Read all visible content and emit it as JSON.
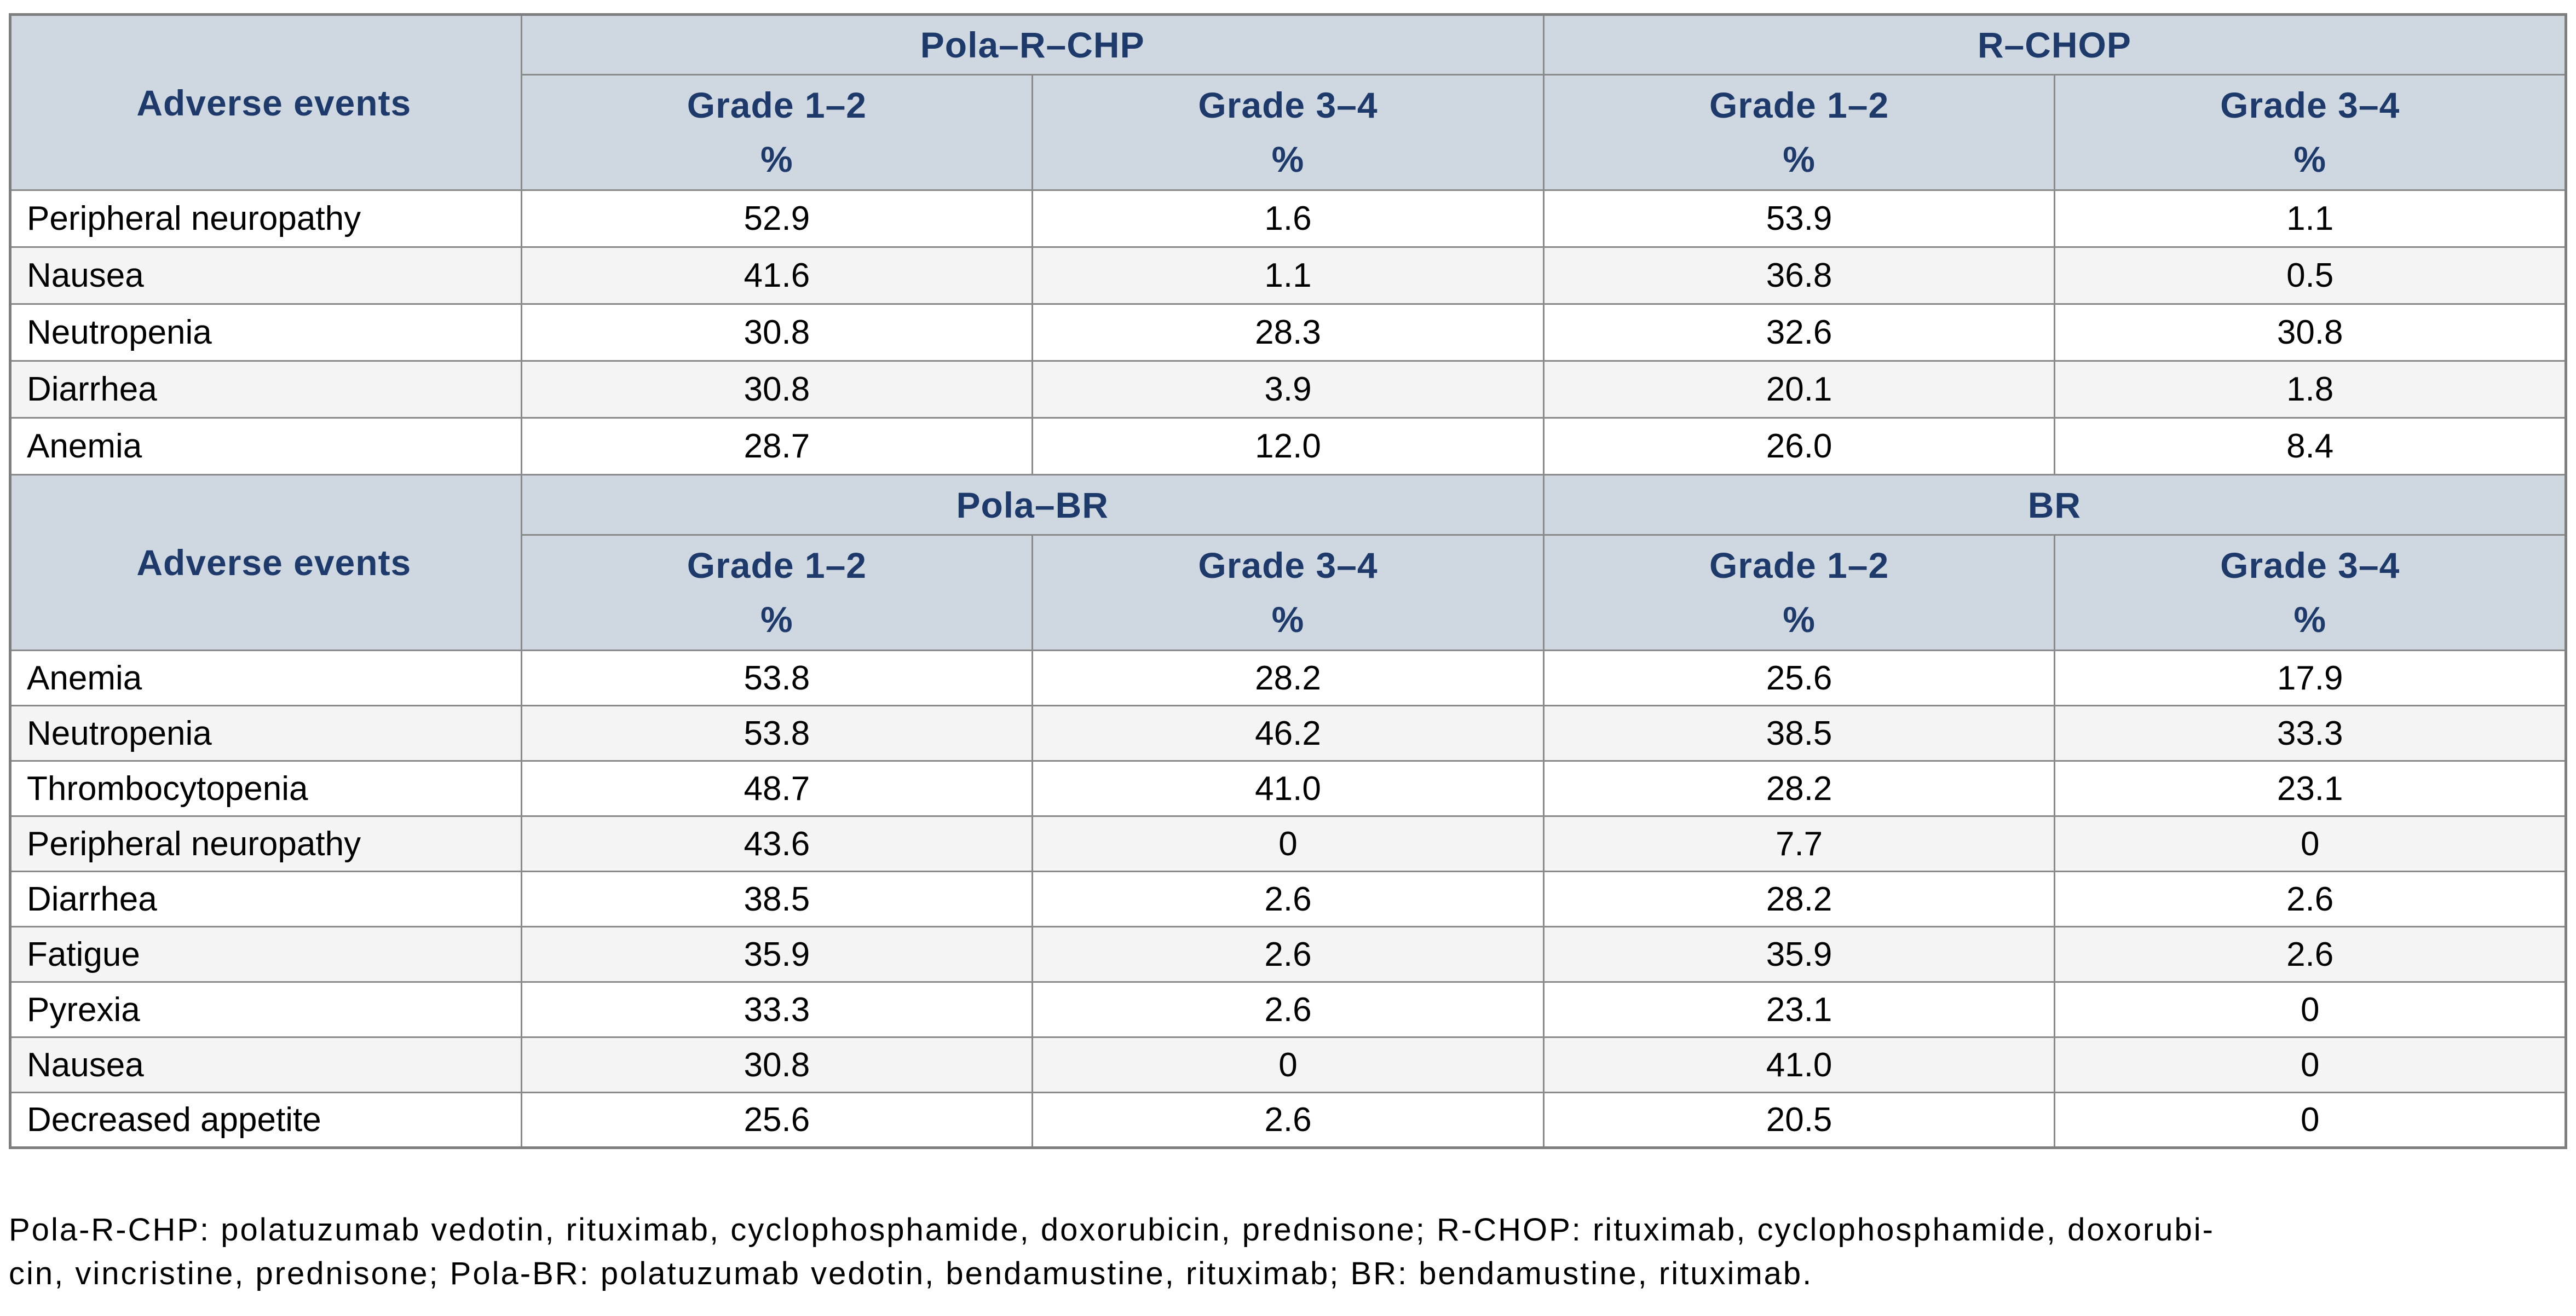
{
  "colors": {
    "header_bg": "#cfd8e1",
    "header_text": "#1e3a6b",
    "border": "#8a8a8a",
    "stripe_gray": "#f4f4f4",
    "row_white": "#ffffff",
    "data_text": "#000000"
  },
  "tables": [
    {
      "row_header_label": "Adverse events",
      "group_headers": [
        "Pola–R–CHP",
        "R–CHOP"
      ],
      "sub_headers": [
        {
          "grade": "Grade 1–2",
          "unit": "%"
        },
        {
          "grade": "Grade 3–4",
          "unit": "%"
        },
        {
          "grade": "Grade 1–2",
          "unit": "%"
        },
        {
          "grade": "Grade 3–4",
          "unit": "%"
        }
      ],
      "rows": [
        {
          "event": "Peripheral neuropathy",
          "values": [
            "52.9",
            "1.6",
            "53.9",
            "1.1"
          ]
        },
        {
          "event": "Nausea",
          "values": [
            "41.6",
            "1.1",
            "36.8",
            "0.5"
          ]
        },
        {
          "event": "Neutropenia",
          "values": [
            "30.8",
            "28.3",
            "32.6",
            "30.8"
          ]
        },
        {
          "event": "Diarrhea",
          "values": [
            "30.8",
            "3.9",
            "20.1",
            "1.8"
          ]
        },
        {
          "event": "Anemia",
          "values": [
            "28.7",
            "12.0",
            "26.0",
            "8.4"
          ]
        }
      ]
    },
    {
      "row_header_label": "Adverse events",
      "group_headers": [
        "Pola–BR",
        "BR"
      ],
      "sub_headers": [
        {
          "grade": "Grade 1–2",
          "unit": "%"
        },
        {
          "grade": "Grade 3–4",
          "unit": "%"
        },
        {
          "grade": "Grade 1–2",
          "unit": "%"
        },
        {
          "grade": "Grade 3–4",
          "unit": "%"
        }
      ],
      "rows": [
        {
          "event": "Anemia",
          "values": [
            "53.8",
            "28.2",
            "25.6",
            "17.9"
          ]
        },
        {
          "event": "Neutropenia",
          "values": [
            "53.8",
            "46.2",
            "38.5",
            "33.3"
          ]
        },
        {
          "event": "Thrombocytopenia",
          "values": [
            "48.7",
            "41.0",
            "28.2",
            "23.1"
          ]
        },
        {
          "event": "Peripheral neuropathy",
          "values": [
            "43.6",
            "0",
            "7.7",
            "0"
          ]
        },
        {
          "event": "Diarrhea",
          "values": [
            "38.5",
            "2.6",
            "28.2",
            "2.6"
          ]
        },
        {
          "event": "Fatigue",
          "values": [
            "35.9",
            "2.6",
            "35.9",
            "2.6"
          ]
        },
        {
          "event": "Pyrexia",
          "values": [
            "33.3",
            "2.6",
            "23.1",
            "0"
          ]
        },
        {
          "event": "Nausea",
          "values": [
            "30.8",
            "0",
            "41.0",
            "0"
          ]
        },
        {
          "event": "Decreased appetite",
          "values": [
            "25.6",
            "2.6",
            "20.5",
            "0"
          ]
        }
      ]
    }
  ],
  "footnote": {
    "line1": "Pola-R-CHP: polatuzumab vedotin, rituximab, cyclophosphamide, doxorubicin, prednisone; R-CHOP: rituximab, cyclophosphamide, doxorubi-",
    "line2": "cin, vincristine, prednisone; Pola-BR: polatuzumab vedotin, bendamustine, rituximab; BR: bendamustine, rituximab."
  }
}
